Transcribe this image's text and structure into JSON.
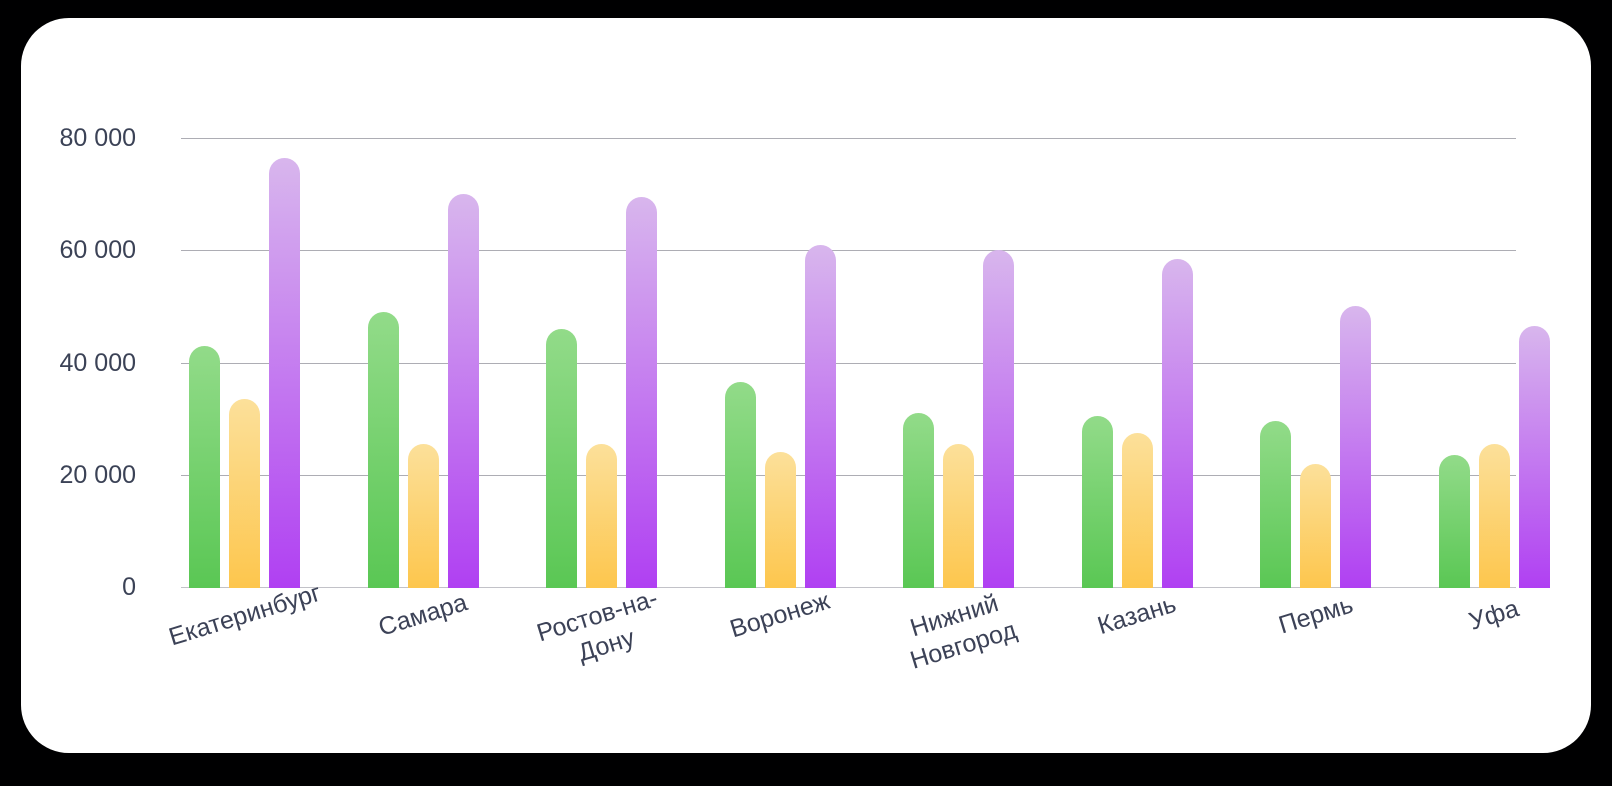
{
  "page": {
    "background_color": "#000002",
    "card_background_color": "#ffffff"
  },
  "chart_data": {
    "type": "bar",
    "title": "",
    "legend": "none",
    "grid": true,
    "categories": [
      "Екатеринбург",
      "Самара",
      "Ростов-на-Дону",
      "Воронеж",
      "Нижний Новгород",
      "Казань",
      "Пермь",
      "Уфа"
    ],
    "category_display_lines": [
      [
        "Екатеринбург"
      ],
      [
        "Самара"
      ],
      [
        "Ростов-на-",
        "Дону"
      ],
      [
        "Воронеж"
      ],
      [
        "Нижний",
        "Новгород"
      ],
      [
        "Казань"
      ],
      [
        "Пермь"
      ],
      [
        "Уфа"
      ]
    ],
    "series": [
      {
        "name": "green",
        "color_top": "#92db89",
        "color_bottom": "#5ac754",
        "values": [
          43000,
          49000,
          46000,
          36500,
          31000,
          30500,
          29500,
          23500
        ]
      },
      {
        "name": "yellow",
        "color_top": "#fce09a",
        "color_bottom": "#fdc64d",
        "values": [
          33500,
          25500,
          25500,
          24000,
          25500,
          27500,
          22000,
          25500
        ]
      },
      {
        "name": "purple",
        "color_top": "#d8b6ed",
        "color_bottom": "#b040f2",
        "values": [
          76500,
          70000,
          69500,
          61000,
          60000,
          58500,
          50000,
          46500
        ]
      }
    ],
    "y_axis": {
      "min": 0,
      "max": 80000,
      "tick_step": 20000,
      "tick_labels": [
        "0",
        "20 000",
        "40 000",
        "60 000",
        "80 000"
      ]
    },
    "axis_colors": {
      "gridline": "#adadb4",
      "zero_line": "#c2c2c8",
      "tick_text": "#3b4256",
      "category_text": "#3c4257"
    }
  }
}
